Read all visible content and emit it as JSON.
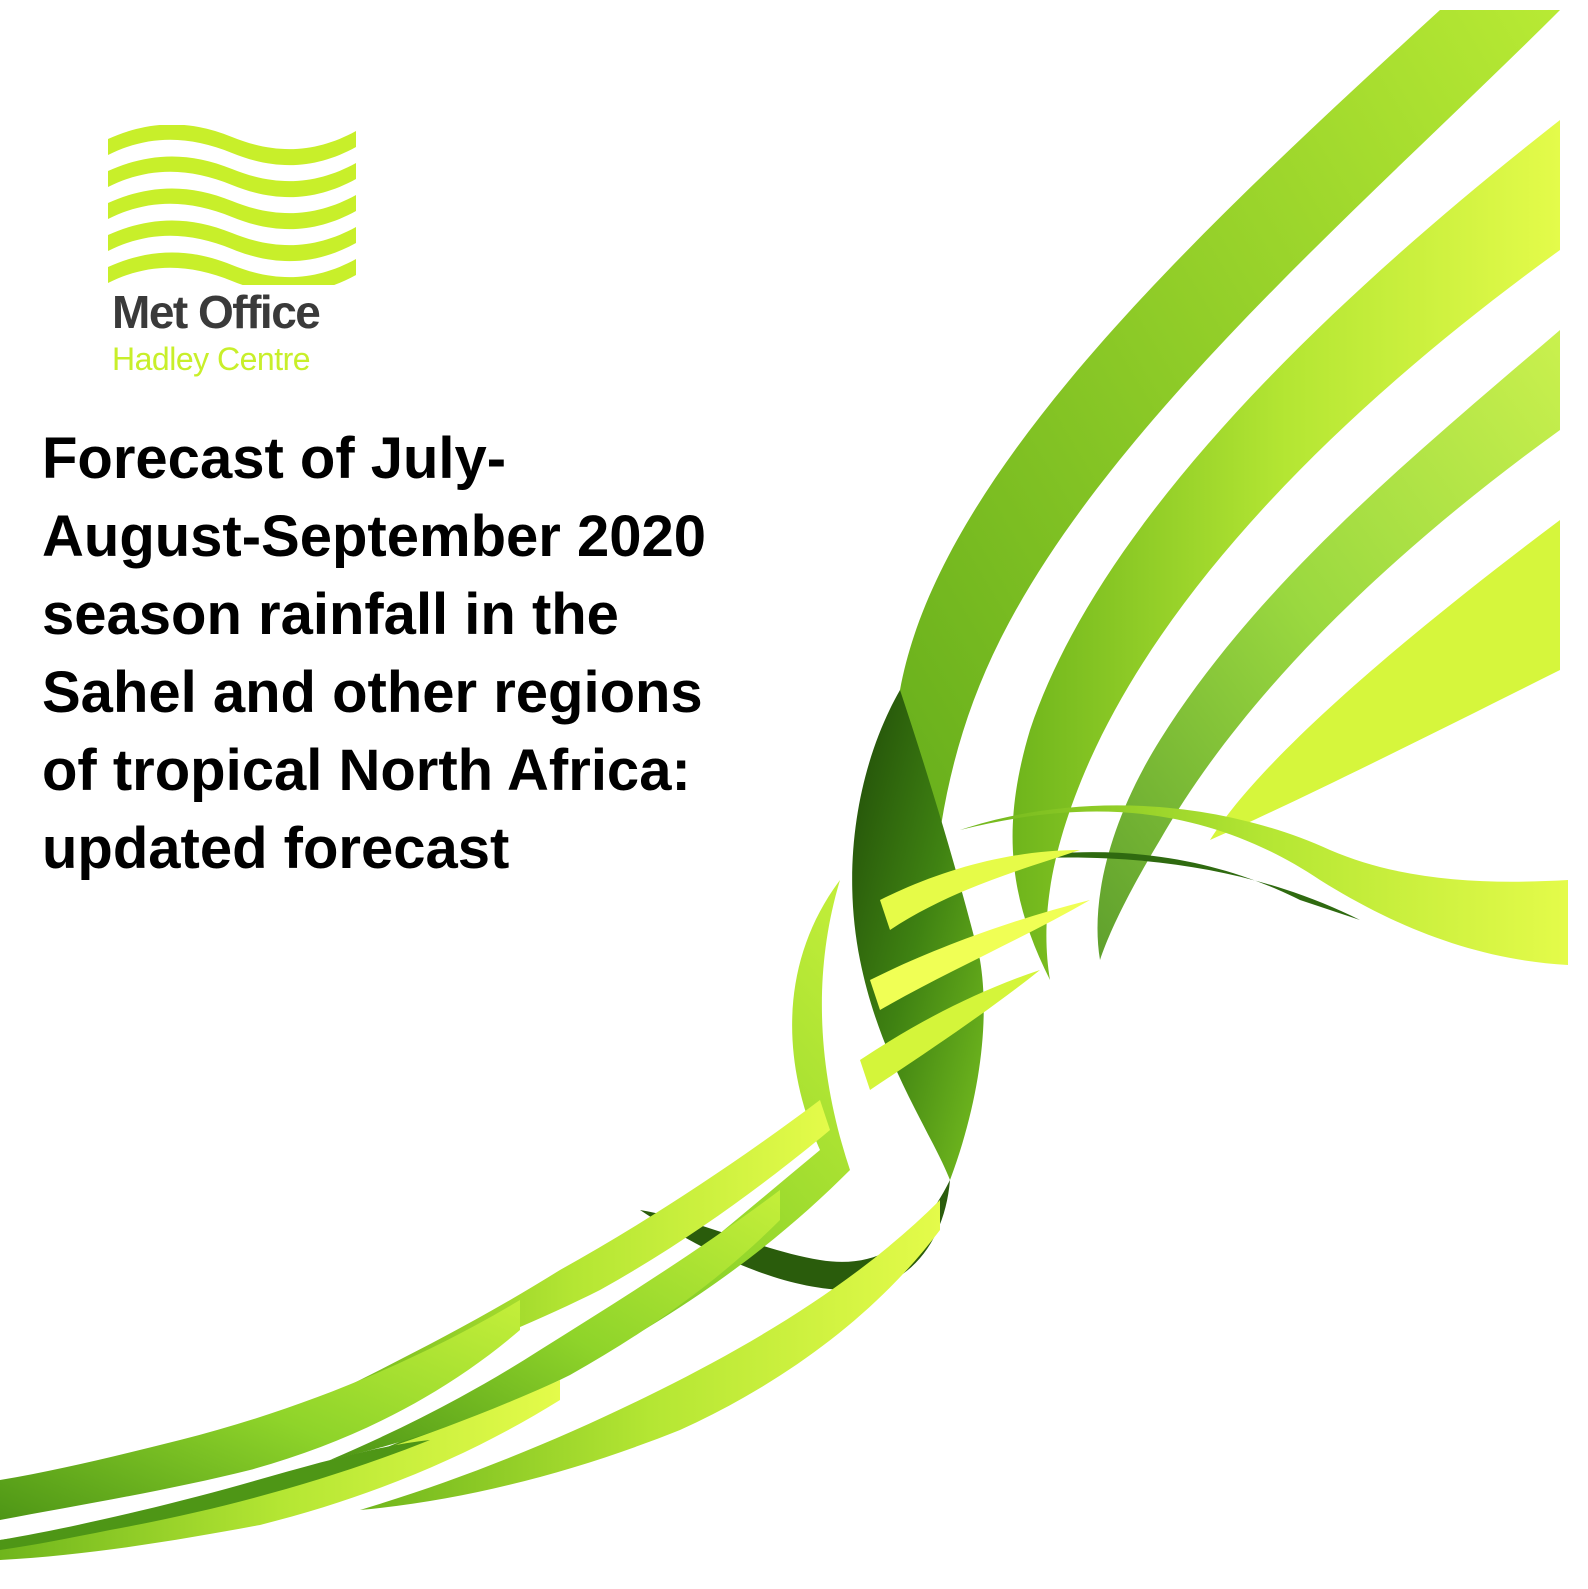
{
  "logo": {
    "name": "Met Office",
    "subtitle": "Hadley Centre",
    "icon": "met-office-waves-icon",
    "color": "#c8ef2a"
  },
  "title": {
    "lines": [
      "Forecast of July-",
      "August-September 2020",
      "season rainfall in the",
      "Sahel and other regions",
      "of tropical North Africa:",
      "updated forecast"
    ]
  },
  "decoration": {
    "name": "green-ribbon-graphic",
    "colors": {
      "light": "#d4f53a",
      "mid": "#9ed92a",
      "dark": "#2f6a10"
    }
  }
}
